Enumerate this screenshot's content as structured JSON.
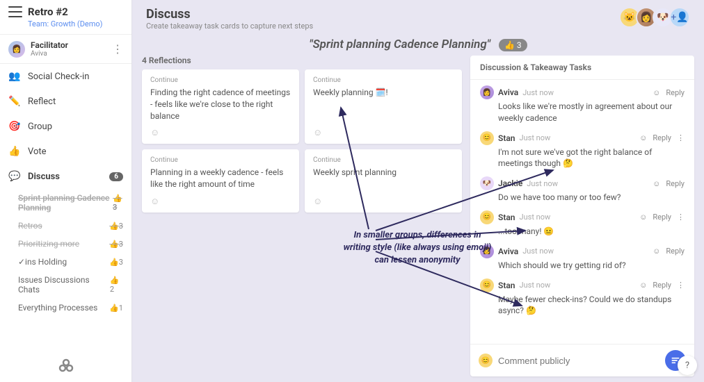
{
  "sidebar": {
    "title": "Retro #2",
    "team": "Team: Growth (Demo)",
    "facilitator_role": "Facilitator",
    "facilitator_name": "Aviva",
    "nav": [
      {
        "icon": "👥",
        "label": "Social Check-in"
      },
      {
        "icon": "✏️",
        "label": "Reflect"
      },
      {
        "icon": "🎯",
        "label": "Group"
      },
      {
        "icon": "👍",
        "label": "Vote"
      },
      {
        "icon": "💬",
        "label": "Discuss",
        "badge": "6",
        "active": true
      }
    ],
    "sub_items": [
      {
        "label": "Sprint planning Cadence Planning",
        "votes": 3,
        "strike": true,
        "active": true
      },
      {
        "label": "Retros",
        "votes": 3,
        "strike": true
      },
      {
        "label": "Prioritizing more",
        "votes": 3,
        "strike": true
      },
      {
        "label": "✓ins Holding",
        "votes": 3
      },
      {
        "label": "Issues Discussions Chats",
        "votes": 2
      },
      {
        "label": "Everything Processes",
        "votes": 1
      }
    ]
  },
  "header": {
    "title": "Discuss",
    "subtitle": "Create takeaway task cards to capture next steps",
    "topic": "\"Sprint planning Cadence Planning\"",
    "topic_votes": "3"
  },
  "reflections": {
    "header": "4 Reflections",
    "cards": [
      {
        "tag": "Continue",
        "body": "Finding the right cadence of meetings - feels like we're close to the right balance"
      },
      {
        "tag": "Continue",
        "body": "Weekly planning 🗓️!"
      },
      {
        "tag": "Continue",
        "body": "Planning in a weekly cadence - feels like the right amount of time"
      },
      {
        "tag": "Continue",
        "body": "Weekly sprint planning"
      }
    ]
  },
  "discussion": {
    "header": "Discussion & Takeaway Tasks",
    "comments": [
      {
        "name": "Aviva",
        "time": "Just now",
        "text": "Looks like we're mostly in agreement about our weekly cadence",
        "av": "avivaav",
        "emoji": "👩"
      },
      {
        "name": "Stan",
        "time": "Just now",
        "text": "I'm not sure we've got the right balance of meetings though 🤔",
        "av": "stanav",
        "emoji": "😊",
        "menu": true
      },
      {
        "name": "Jackie",
        "time": "Just now",
        "text": "Do we have too many or too few?",
        "av": "jackieav",
        "emoji": "🐶"
      },
      {
        "name": "Stan",
        "time": "Just now",
        "text": "...too many! 😐",
        "av": "stanav",
        "emoji": "😊",
        "menu": true
      },
      {
        "name": "Aviva",
        "time": "Just now",
        "text": "Which should we try getting rid of?",
        "av": "avivaav",
        "emoji": "👩"
      },
      {
        "name": "Stan",
        "time": "Just now",
        "text": "Maybe fewer check-ins? Could we do standups async? 🤔",
        "av": "stanav",
        "emoji": "😊",
        "menu": true
      }
    ],
    "placeholder": "Comment publicly",
    "reply_label": "Reply"
  },
  "annotation": "In smaller groups, differences in writing style (like always using emoji) can lessen anonymity",
  "colors": {
    "bg": "#e8e6f2",
    "arrow": "#2e2a5e",
    "accent": "#4a6de8"
  }
}
